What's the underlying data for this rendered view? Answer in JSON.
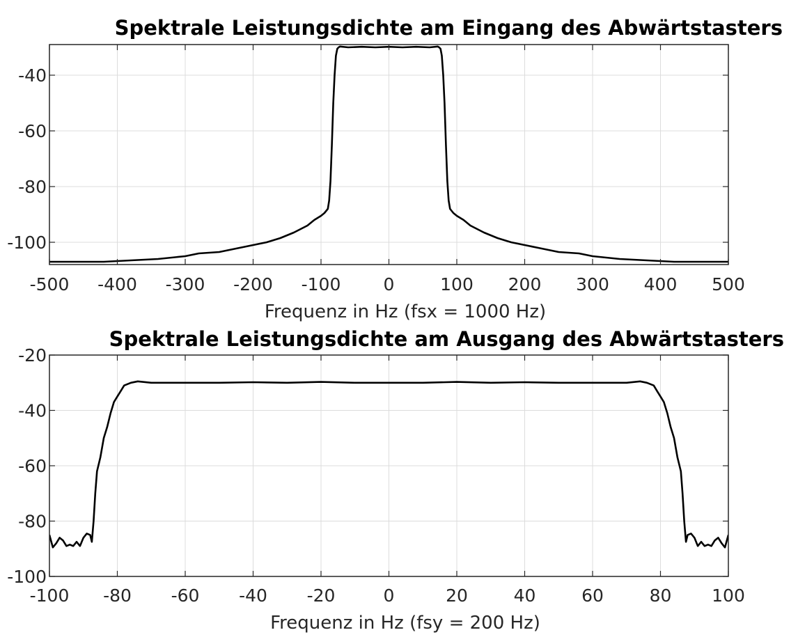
{
  "chart_data": [
    {
      "type": "line",
      "title": "Spektrale Leistungsdichte am Eingang des Abwärtstasters",
      "xlabel": "Frequenz in Hz (fsx = 1000 Hz)",
      "ylabel": "",
      "xlim": [
        -500,
        500
      ],
      "ylim": [
        -108,
        -29
      ],
      "xticks": [
        -500,
        -400,
        -300,
        -200,
        -100,
        0,
        100,
        200,
        300,
        400,
        500
      ],
      "yticks": [
        -100,
        -80,
        -60,
        -40
      ],
      "xtick_labels": [
        "-500",
        "-400",
        "-300",
        "-200",
        "-100",
        "0",
        "100",
        "200",
        "300",
        "400",
        "500"
      ],
      "ytick_labels": [
        "-100",
        "-80",
        "-60",
        "-40"
      ],
      "grid": true,
      "series": [
        {
          "x": [
            -500,
            -460,
            -420,
            -380,
            -340,
            -300,
            -280,
            -250,
            -220,
            -200,
            -180,
            -160,
            -140,
            -120,
            -110,
            -100,
            -95,
            -90,
            -88,
            -86,
            -84,
            -82,
            -80,
            -78,
            -76,
            -74,
            -72,
            -60,
            -40,
            -20,
            0,
            20,
            40,
            60,
            72,
            74,
            76,
            78,
            80,
            82,
            84,
            86,
            88,
            90,
            95,
            100,
            110,
            120,
            140,
            160,
            180,
            200,
            220,
            250,
            280,
            300,
            340,
            380,
            420,
            460,
            500
          ],
          "y": [
            -107,
            -107,
            -107,
            -106.5,
            -106,
            -105,
            -104,
            -103.5,
            -102,
            -101,
            -100,
            -98.5,
            -96.5,
            -94,
            -92,
            -90.5,
            -89.5,
            -88,
            -85,
            -78,
            -65,
            -50,
            -40,
            -33,
            -30.5,
            -30,
            -29.7,
            -30,
            -29.8,
            -30,
            -29.8,
            -30,
            -29.8,
            -30,
            -29.7,
            -30,
            -30.5,
            -33,
            -40,
            -50,
            -65,
            -78,
            -85,
            -88,
            -89.5,
            -90.5,
            -92,
            -94,
            -96.5,
            -98.5,
            -100,
            -101,
            -102,
            -103.5,
            -104,
            -105,
            -106,
            -106.5,
            -107,
            -107,
            -107
          ]
        }
      ]
    },
    {
      "type": "line",
      "title": "Spektrale Leistungsdichte am Ausgang des Abwärtstasters",
      "xlabel": "Frequenz in Hz (fsy = 200 Hz)",
      "ylabel": "",
      "xlim": [
        -100,
        100
      ],
      "ylim": [
        -100,
        -20
      ],
      "xticks": [
        -100,
        -80,
        -60,
        -40,
        -20,
        0,
        20,
        40,
        60,
        80,
        100
      ],
      "yticks": [
        -100,
        -80,
        -60,
        -40,
        -20
      ],
      "xtick_labels": [
        "-100",
        "-80",
        "-60",
        "-40",
        "-20",
        "0",
        "20",
        "40",
        "60",
        "80",
        "100"
      ],
      "ytick_labels": [
        "-100",
        "-80",
        "-60",
        "-40",
        "-20"
      ],
      "grid": true,
      "series": [
        {
          "x": [
            -100,
            -99,
            -98,
            -97,
            -96,
            -95,
            -94,
            -93,
            -92,
            -91,
            -90,
            -89,
            -88,
            -87.5,
            -87,
            -86.5,
            -86,
            -85,
            -84,
            -83,
            -82,
            -81,
            -80,
            -79,
            -78,
            -76,
            -74,
            -70,
            -60,
            -50,
            -40,
            -30,
            -20,
            -10,
            0,
            10,
            20,
            30,
            40,
            50,
            60,
            70,
            74,
            76,
            78,
            79,
            80,
            81,
            82,
            83,
            84,
            85,
            86,
            86.5,
            87,
            87.5,
            88,
            89,
            90,
            91,
            92,
            93,
            94,
            95,
            96,
            97,
            98,
            99,
            100
          ],
          "y": [
            -85,
            -89.5,
            -88,
            -86,
            -87,
            -89,
            -88.5,
            -89,
            -87.5,
            -89,
            -86,
            -84.5,
            -85,
            -87.5,
            -80,
            -70,
            -62,
            -57,
            -50,
            -46,
            -41,
            -37,
            -35,
            -33,
            -31,
            -30,
            -29.5,
            -30,
            -30,
            -30,
            -29.8,
            -30,
            -29.7,
            -30,
            -30,
            -30,
            -29.7,
            -30,
            -29.8,
            -30,
            -30,
            -30,
            -29.5,
            -30,
            -31,
            -33,
            -35,
            -37,
            -41,
            -46,
            -50,
            -57,
            -62,
            -70,
            -80,
            -87.5,
            -85,
            -84.5,
            -86,
            -89,
            -87.5,
            -89,
            -88.5,
            -89,
            -87,
            -86,
            -88,
            -89.5,
            -85
          ]
        }
      ]
    }
  ]
}
